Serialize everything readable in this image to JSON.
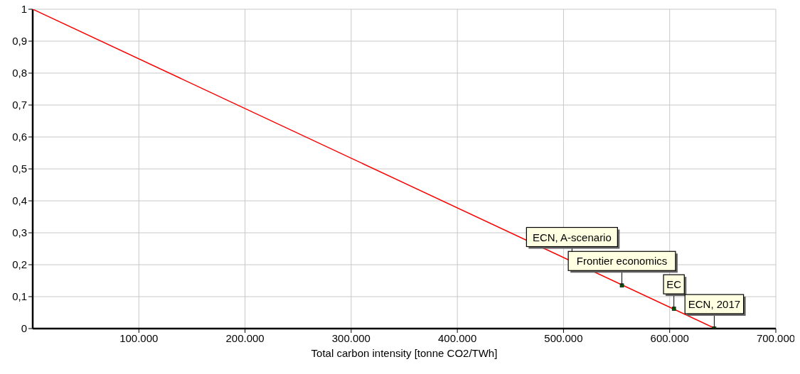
{
  "chart_data": {
    "type": "line",
    "xlabel": "Total carbon intensity [tonne CO2/TWh]",
    "xlim": [
      0,
      700000
    ],
    "xticks": [
      {
        "value": 100000,
        "label": "100.000"
      },
      {
        "value": 200000,
        "label": "200.000"
      },
      {
        "value": 300000,
        "label": "300.000"
      },
      {
        "value": 400000,
        "label": "400.000"
      },
      {
        "value": 500000,
        "label": "500.000"
      },
      {
        "value": 600000,
        "label": "600.000"
      },
      {
        "value": 700000,
        "label": "700.000"
      }
    ],
    "ylim": [
      0,
      1
    ],
    "yticks": [
      0,
      {
        "value": 0.1,
        "label": "0,1"
      },
      {
        "value": 0.2,
        "label": "0,2"
      },
      {
        "value": 0.3,
        "label": "0,3"
      },
      {
        "value": 0.4,
        "label": "0,4"
      },
      {
        "value": 0.5,
        "label": "0,5"
      },
      {
        "value": 0.6,
        "label": "0,6"
      },
      {
        "value": 0.7,
        "label": "0,7"
      },
      {
        "value": 0.8,
        "label": "0,8"
      },
      {
        "value": 0.9,
        "label": "0,9"
      },
      1
    ],
    "grid": true,
    "legend": false,
    "series": [
      {
        "type": "line",
        "color": "#ff0000",
        "x": [
          0,
          643000
        ],
        "values": [
          1,
          0
        ],
        "marker": "none"
      },
      {
        "type": "scatter",
        "color": "#006400",
        "x": [
          555000,
          604000,
          642000
        ],
        "values": [
          0.135,
          0.062,
          0
        ],
        "marker": "square"
      }
    ],
    "annotations": [
      {
        "text": "ECN, A-scenario",
        "x": 508000,
        "y": 0.21
      },
      {
        "text": "Frontier economics",
        "x": 555000,
        "y": 0.135
      },
      {
        "text": "EC",
        "x": 604000,
        "y": 0.062
      },
      {
        "text": "ECN, 2017",
        "x": 642000,
        "y": 0
      }
    ]
  }
}
